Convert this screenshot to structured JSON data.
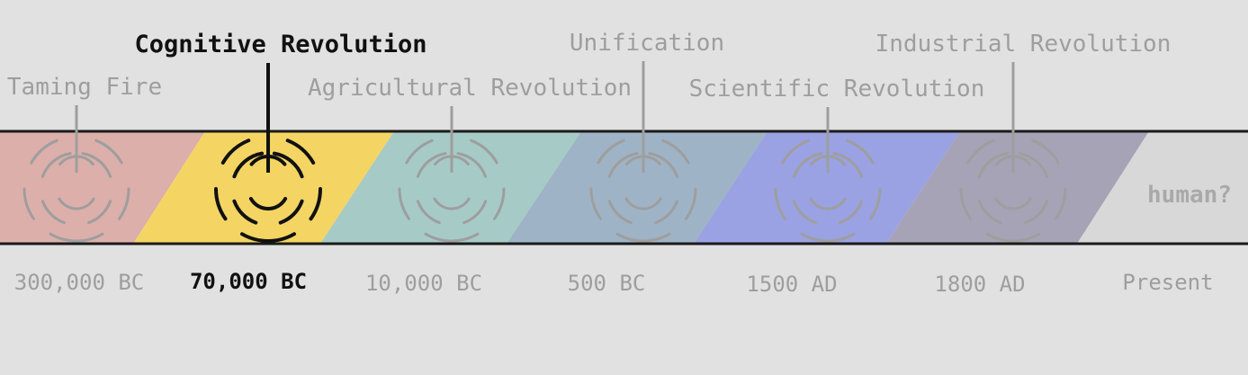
{
  "timeline": {
    "events": [
      {
        "label": "Taming Fire",
        "date": "300,000 BC",
        "color": "#dcafaa",
        "active": false
      },
      {
        "label": "Cognitive Revolution",
        "date": "70,000 BC",
        "color": "#f4d563",
        "active": true
      },
      {
        "label": "Agricultural Revolution",
        "date": "10,000 BC",
        "color": "#a6cbc7",
        "active": false
      },
      {
        "label": "Unification",
        "date": "500 BC",
        "color": "#9fb3c6",
        "active": false
      },
      {
        "label": "Scientific Revolution",
        "date": "1500 AD",
        "color": "#9aa2e3",
        "active": false
      },
      {
        "label": "Industrial Revolution",
        "date": "1800 AD",
        "color": "#a6a3b7",
        "active": false
      }
    ],
    "future": {
      "label": "human?",
      "date": "Present",
      "color": "#d8d8d8"
    },
    "colors": {
      "background": "#e1e1e1",
      "active_ink": "#111111",
      "inactive_ink": "#9e9e9e"
    }
  }
}
